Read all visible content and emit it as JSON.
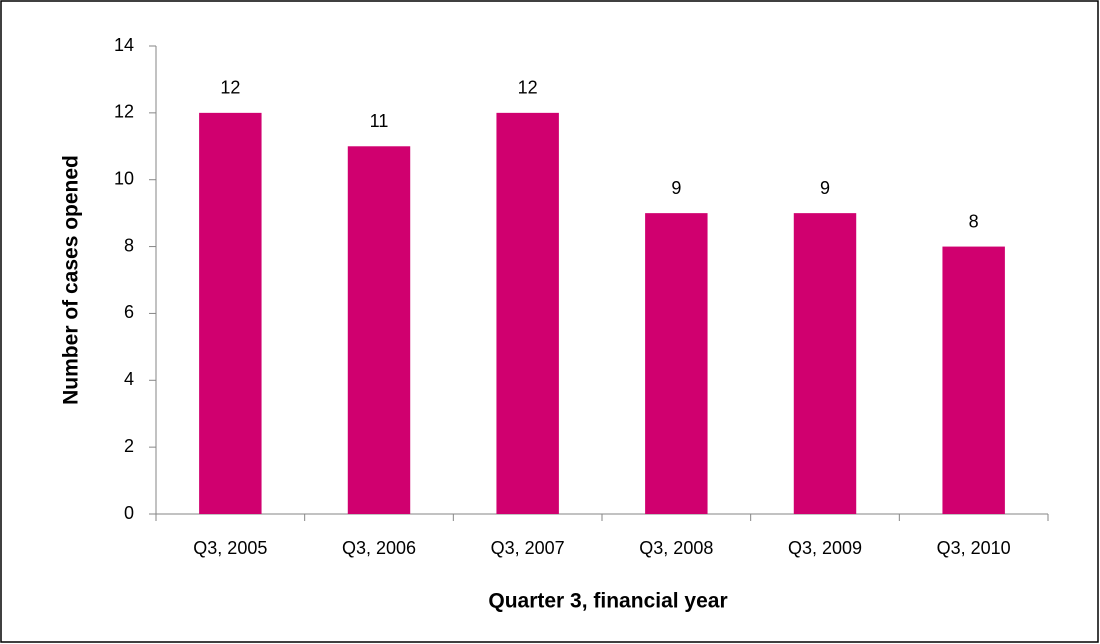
{
  "chart_data": {
    "type": "bar",
    "categories": [
      "Q3, 2005",
      "Q3, 2006",
      "Q3, 2007",
      "Q3, 2008",
      "Q3, 2009",
      "Q3, 2010"
    ],
    "values": [
      12,
      11,
      12,
      9,
      9,
      8
    ],
    "color": "#d0006f",
    "x_label": "Quarter 3, financial year",
    "y_label": "Number of cases opened",
    "ylim": [
      0,
      14
    ],
    "yticks": [
      0,
      2,
      4,
      6,
      8,
      10,
      12,
      14
    ],
    "grid": false
  }
}
